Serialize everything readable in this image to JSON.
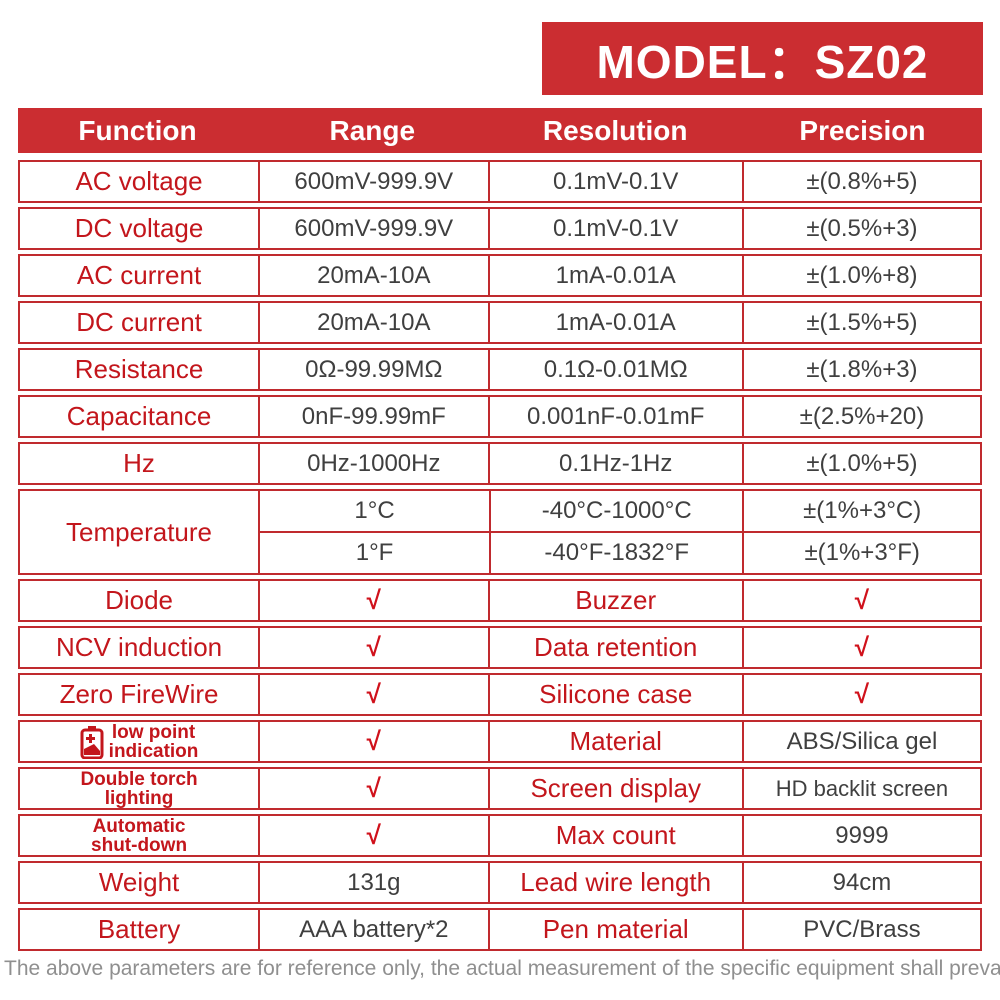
{
  "banner": {
    "label": "MODEL：SZ02"
  },
  "colors": {
    "brand_red_bg": "#cb2d31",
    "text_red": "#c3161c",
    "border_red": "#c02a2e",
    "value_dark": "#3f3f3f",
    "disclaimer_gray": "#8f8f8f"
  },
  "table": {
    "headers": [
      "Function",
      "Range",
      "Resolution",
      "Precision"
    ],
    "rows": [
      {
        "name": "ac-voltage",
        "cells": [
          {
            "t": "AC voltage",
            "c": "red"
          },
          {
            "t": "600mV-999.9V",
            "c": "dark"
          },
          {
            "t": "0.1mV-0.1V",
            "c": "dark"
          },
          {
            "t": "±(0.8%+5)",
            "c": "dark"
          }
        ]
      },
      {
        "name": "dc-voltage",
        "cells": [
          {
            "t": "DC voltage",
            "c": "red"
          },
          {
            "t": "600mV-999.9V",
            "c": "dark"
          },
          {
            "t": "0.1mV-0.1V",
            "c": "dark"
          },
          {
            "t": "±(0.5%+3)",
            "c": "dark"
          }
        ]
      },
      {
        "name": "ac-current",
        "cells": [
          {
            "t": "AC current",
            "c": "red"
          },
          {
            "t": "20mA-10A",
            "c": "dark"
          },
          {
            "t": "1mA-0.01A",
            "c": "dark"
          },
          {
            "t": "±(1.0%+8)",
            "c": "dark"
          }
        ]
      },
      {
        "name": "dc-current",
        "cells": [
          {
            "t": "DC current",
            "c": "red"
          },
          {
            "t": "20mA-10A",
            "c": "dark"
          },
          {
            "t": "1mA-0.01A",
            "c": "dark"
          },
          {
            "t": "±(1.5%+5)",
            "c": "dark"
          }
        ]
      },
      {
        "name": "resistance",
        "cells": [
          {
            "t": "Resistance",
            "c": "red"
          },
          {
            "t": "0Ω-99.99MΩ",
            "c": "dark"
          },
          {
            "t": "0.1Ω-0.01MΩ",
            "c": "dark"
          },
          {
            "t": "±(1.8%+3)",
            "c": "dark"
          }
        ]
      },
      {
        "name": "capacitance",
        "cells": [
          {
            "t": "Capacitance",
            "c": "red"
          },
          {
            "t": "0nF-99.99mF",
            "c": "dark"
          },
          {
            "t": "0.001nF-0.01mF",
            "c": "dark"
          },
          {
            "t": "±(2.5%+20)",
            "c": "dark"
          }
        ]
      },
      {
        "name": "hz",
        "cells": [
          {
            "t": "Hz",
            "c": "red"
          },
          {
            "t": "0Hz-1000Hz",
            "c": "dark"
          },
          {
            "t": "0.1Hz-1Hz",
            "c": "dark"
          },
          {
            "t": "±(1.0%+5)",
            "c": "dark"
          }
        ]
      },
      {
        "name": "temperature",
        "type": "double",
        "label": "Temperature",
        "subrows": [
          [
            {
              "t": "1°C",
              "c": "dark"
            },
            {
              "t": "-40°C-1000°C",
              "c": "dark"
            },
            {
              "t": "±(1%+3°C)",
              "c": "dark"
            }
          ],
          [
            {
              "t": "1°F",
              "c": "dark"
            },
            {
              "t": "-40°F-1832°F",
              "c": "dark"
            },
            {
              "t": "±(1%+3°F)",
              "c": "dark"
            }
          ]
        ]
      },
      {
        "name": "diode",
        "cells": [
          {
            "t": "Diode",
            "c": "red"
          },
          {
            "t": "√",
            "c": "check"
          },
          {
            "t": "Buzzer",
            "c": "red"
          },
          {
            "t": "√",
            "c": "check"
          }
        ]
      },
      {
        "name": "ncv-induction",
        "cells": [
          {
            "t": "NCV induction",
            "c": "red"
          },
          {
            "t": "√",
            "c": "check"
          },
          {
            "t": "Data retention",
            "c": "red"
          },
          {
            "t": "√",
            "c": "check"
          }
        ]
      },
      {
        "name": "zero-firewire",
        "cells": [
          {
            "t": "Zero FireWire",
            "c": "red"
          },
          {
            "t": "√",
            "c": "check"
          },
          {
            "t": "Silicone case",
            "c": "red"
          },
          {
            "t": "√",
            "c": "check"
          }
        ]
      },
      {
        "name": "low-point-indication",
        "cells": [
          {
            "lines": [
              "low point",
              "indication"
            ],
            "c": "red",
            "icon": "battery-low-icon"
          },
          {
            "t": "√",
            "c": "check"
          },
          {
            "t": "Material",
            "c": "red"
          },
          {
            "t": "ABS/Silica gel",
            "c": "dark"
          }
        ]
      },
      {
        "name": "double-torch-lighting",
        "cells": [
          {
            "lines": [
              "Double torch",
              "lighting"
            ],
            "c": "red"
          },
          {
            "t": "√",
            "c": "check"
          },
          {
            "t": "Screen display",
            "c": "red"
          },
          {
            "t": "HD backlit screen",
            "c": "dark",
            "small": true
          }
        ]
      },
      {
        "name": "automatic-shutdown",
        "cells": [
          {
            "lines": [
              "Automatic",
              "shut-down"
            ],
            "c": "red"
          },
          {
            "t": "√",
            "c": "check"
          },
          {
            "t": "Max count",
            "c": "red"
          },
          {
            "t": "9999",
            "c": "dark"
          }
        ]
      },
      {
        "name": "weight",
        "cells": [
          {
            "t": "Weight",
            "c": "red"
          },
          {
            "t": "131g",
            "c": "dark"
          },
          {
            "t": "Lead wire length",
            "c": "red"
          },
          {
            "t": "94cm",
            "c": "dark"
          }
        ]
      },
      {
        "name": "battery",
        "cells": [
          {
            "t": "Battery",
            "c": "red"
          },
          {
            "t": "AAA battery*2",
            "c": "dark"
          },
          {
            "t": "Pen material",
            "c": "red"
          },
          {
            "t": "PVC/Brass",
            "c": "dark"
          }
        ]
      }
    ],
    "column_semantics": [
      "function",
      "range",
      "resolution",
      "precision"
    ]
  },
  "footer": {
    "disclaimer": "The above parameters are for reference only, the actual measurement of the specific equipment shall prevail!"
  }
}
